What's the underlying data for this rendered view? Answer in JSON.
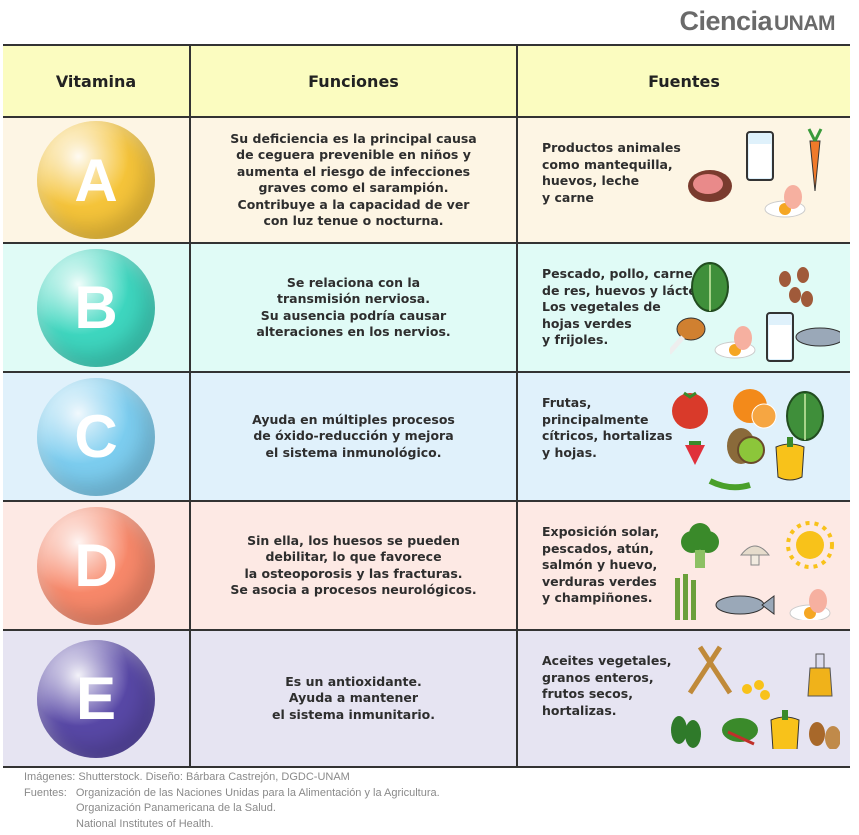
{
  "logo": {
    "text": "Ciencia",
    "suffix": "UNAM"
  },
  "header": {
    "vitamina": "Vitamina",
    "funciones": "Funciones",
    "fuentes": "Fuentes"
  },
  "rows": [
    {
      "letter": "A",
      "color": "#f5c43a",
      "bg": "#fdf5e4",
      "funciones": "Su deficiencia es la principal causa\nde ceguera prevenible en niños y\naumenta el riesgo de infecciones\ngraves como el sarampión.\nContribuye a la capacidad de ver\ncon luz tenue o nocturna.",
      "fuentes": "Productos animales\ncomo mantequilla,\nhuevos, leche\ny carne",
      "icons": [
        "meat-icon",
        "milk-glass-icon",
        "carrot-icon",
        "egg-icon"
      ]
    },
    {
      "letter": "B",
      "color": "#3ed6bf",
      "bg": "#e0fbf6",
      "funciones": "Se relaciona con la\ntransmisión nerviosa.\nSu ausencia podría causar\nalteraciones en los nervios.",
      "fuentes": "Pescado, pollo, carne\nde res, huevos y lácteos.\nLos vegetales de\nhojas verdes\ny frijoles.",
      "icons": [
        "leafy-greens-icon",
        "beans-icon",
        "chicken-leg-icon",
        "egg-icon",
        "milk-glass-icon",
        "fish-icon"
      ]
    },
    {
      "letter": "C",
      "color": "#7ccdef",
      "bg": "#e0f1fb",
      "funciones": "Ayuda en múltiples procesos\nde óxido-reducción y mejora\nel sistema inmunológico.",
      "fuentes": "Frutas,\nprincipalmente\ncítricos, hortalizas\ny hojas.",
      "icons": [
        "tomato-icon",
        "orange-icon",
        "leafy-greens-icon",
        "strawberry-icon",
        "kiwi-icon",
        "pepper-icon",
        "chili-icon"
      ]
    },
    {
      "letter": "D",
      "color": "#f7886a",
      "bg": "#fde9e4",
      "funciones": "Sin ella, los huesos se pueden\ndebilitar, lo que favorece\nla osteoporosis y las fracturas.\nSe asocia a procesos neurológicos.",
      "fuentes": "Exposición solar,\npescados, atún,\nsalmón y huevo,\nverduras verdes\ny champiñones.",
      "icons": [
        "broccoli-icon",
        "mushroom-icon",
        "sun-icon",
        "asparagus-icon",
        "fish-icon",
        "egg-icon"
      ]
    },
    {
      "letter": "E",
      "color": "#5848a6",
      "bg": "#e6e4f2",
      "funciones": "Es un antioxidante.\nAyuda a mantener\nel sistema inmunitario.",
      "fuentes": "Aceites vegetales,\ngranos enteros,\nfrutos secos,\nhortalizas.",
      "icons": [
        "wheat-icon",
        "corn-kernels-icon",
        "oil-bottle-icon",
        "spinach-icon",
        "chard-icon",
        "pepper-icon",
        "nuts-icon"
      ]
    }
  ],
  "footer": {
    "images": "Imágenes: Shutterstock. Diseño: Bárbara Castrejón, DGDC-UNAM",
    "sources_label": "Fuentes:",
    "sources": [
      "Organización de las Naciones Unidas para la Alimentación y la Agricultura.",
      "Organización Panamericana de la Salud.",
      "National Institutes of Health."
    ]
  }
}
